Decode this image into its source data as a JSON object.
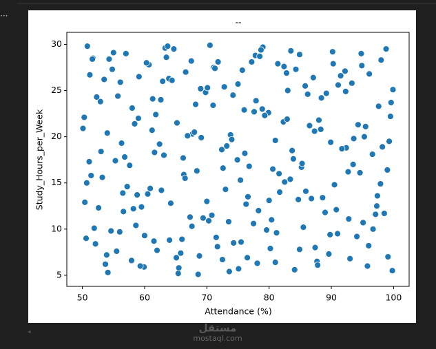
{
  "toolbar": "...",
  "watermark": {
    "logo": "مستقل",
    "text": "mostaql.com"
  },
  "chart_data": {
    "type": "scatter",
    "title": "--",
    "x_label": "Attendance (%)",
    "y_label": "Study_Hours_per_Week",
    "color": "#1f77b4",
    "xlim": [
      47.5,
      102.5
    ],
    "ylim": [
      3.8,
      31.3
    ],
    "xticks": [
      50,
      60,
      70,
      80,
      90,
      100
    ],
    "yticks": [
      5,
      10,
      15,
      20,
      25,
      30
    ],
    "x": [
      50.3,
      52.1,
      54.8,
      57.2,
      59.9,
      62.4,
      64.7,
      67.3,
      69.8,
      72.5,
      74.9,
      77.2,
      79.6,
      82.3,
      84.7,
      87.1,
      89.6,
      92.4,
      94.8,
      97.3,
      99.6,
      51.4,
      53.7,
      56.1,
      58.6,
      61.2,
      63.5,
      66.0,
      68.4,
      71.1,
      73.6,
      76.0,
      78.3,
      81.0,
      83.5,
      85.9,
      88.4,
      91.0,
      93.5,
      96.1,
      98.5,
      50.8,
      53.0,
      55.5,
      58.0,
      60.5,
      62.9,
      65.4,
      67.7,
      70.3,
      72.8,
      75.4,
      77.8,
      80.2,
      82.9,
      85.2,
      87.7,
      90.3,
      92.8,
      95.3,
      97.9,
      99.9,
      51.9,
      54.3,
      56.8,
      59.3,
      61.8,
      64.2,
      66.6,
      69.1,
      71.7,
      74.2,
      76.6,
      79.0,
      81.6,
      84.1,
      86.5,
      89.0,
      91.5,
      94.1,
      96.6,
      99.1,
      50.1,
      52.6,
      55.0,
      57.6,
      60.0,
      62.6,
      65.1,
      67.5,
      70.0,
      72.4,
      75.0,
      77.5,
      79.9,
      82.5,
      84.9,
      87.4,
      89.9,
      92.3,
      94.9,
      97.4,
      99.8,
      51.1,
      53.5,
      56.0,
      58.4,
      60.9,
      63.3,
      65.8,
      68.2,
      70.8,
      73.2,
      75.7,
      78.1,
      80.6,
      83.0,
      85.5,
      88.0,
      90.5,
      93.0,
      95.5,
      98.0,
      50.6,
      53.2,
      55.7,
      58.2,
      60.7,
      63.1,
      65.5,
      68.0,
      70.5,
      73.0,
      75.5,
      77.9,
      80.4,
      82.8,
      85.3,
      87.8,
      90.2,
      92.7,
      95.1,
      97.6,
      99.3,
      51.7,
      54.1,
      56.5,
      59.0,
      61.5,
      63.9,
      66.3,
      68.8,
      71.3,
      73.8,
      76.3,
      78.7,
      81.2,
      83.7,
      86.2,
      88.6,
      91.1,
      93.6,
      96.0,
      98.8,
      50.4,
      52.9,
      55.3,
      57.9,
      60.3,
      62.7,
      65.2,
      67.6,
      70.1,
      72.6,
      75.1,
      77.6,
      80.0,
      82.4,
      84.9,
      87.3,
      89.8,
      92.2,
      94.6,
      97.1,
      99.5,
      51.2,
      53.9,
      56.3,
      58.8,
      61.3,
      63.7,
      66.2,
      68.6,
      71.0,
      73.5,
      76.1,
      78.5,
      81.0,
      83.4,
      85.8,
      88.3,
      90.8,
      93.3,
      95.8,
      98.2,
      50.7,
      52.3,
      54.6,
      57.0,
      59.5,
      62.0,
      64.4,
      66.9,
      69.4,
      71.8,
      74.3,
      76.8,
      79.3,
      81.7,
      84.3,
      86.8,
      89.2,
      91.7,
      94.3,
      96.7,
      99.0,
      51.6,
      54.0,
      56.6,
      59.1,
      61.6,
      64.0,
      66.5,
      69.0,
      71.5,
      74.0,
      76.5,
      78.9,
      81.4,
      83.9
    ],
    "y": [
      22.1,
      8.4,
      27.3,
      14.6,
      5.9,
      19.2,
      29.5,
      11.3,
      24.8,
      6.7,
      17.5,
      28.1,
      9.9,
      21.6,
      13.2,
      26.4,
      7.3,
      18.8,
      29.0,
      12.5,
      23.7,
      15.8,
      6.2,
      25.9,
      10.4,
      20.7,
      28.6,
      8.9,
      16.3,
      27.5,
      5.4,
      22.9,
      12.0,
      19.6,
      29.3,
      14.1,
      24.2,
      9.5,
      17.0,
      26.8,
      11.7,
      29.8,
      18.4,
      7.6,
      23.1,
      13.8,
      26.0,
      5.2,
      20.3,
      10.9,
      25.4,
      15.3,
      28.8,
      7.9,
      21.9,
      16.7,
      6.5,
      27.9,
      11.1,
      20.0,
      14.9,
      25.1,
      10.1,
      28.4,
      17.8,
      6.0,
      22.4,
      12.8,
      27.0,
      19.9,
      8.1,
      24.5,
      13.5,
      29.7,
      16.0,
      5.6,
      21.2,
      11.8,
      26.6,
      9.2,
      18.1,
      7.0,
      20.9,
      12.3,
      29.1,
      16.9,
      9.3,
      24.0,
      6.9,
      28.2,
      13.0,
      18.6,
      25.7,
      10.6,
      22.6,
      15.1,
      28.9,
      8.0,
      19.4,
      24.9,
      27.7,
      13.6,
      5.5,
      17.3,
      26.2,
      9.7,
      21.4,
      14.4,
      29.6,
      7.4,
      23.5,
      11.5,
      19.0,
      27.2,
      6.3,
      16.5,
      25.0,
      10.2,
      21.8,
      14.8,
      6.8,
      21.1,
      28.3,
      9.0,
      15.6,
      24.4,
      12.2,
      27.8,
      18.0,
      5.8,
      20.5,
      29.9,
      14.3,
      8.6,
      23.9,
      11.0,
      26.9,
      17.1,
      6.1,
      29.2,
      16.2,
      10.7,
      23.3,
      19.5,
      28.5,
      5.3,
      13.9,
      22.0,
      8.7,
      26.3,
      15.9,
      7.1,
      27.4,
      20.2,
      12.7,
      29.4,
      9.6,
      18.5,
      24.6,
      13.4,
      25.6,
      19.8,
      8.2,
      29.5,
      12.9,
      23.8,
      17.4,
      6.6,
      28.0,
      14.2,
      21.5,
      10.3,
      25.3,
      16.6,
      5.7,
      22.7,
      13.1,
      27.6,
      7.8,
      20.6,
      9.4,
      27.1,
      16.1,
      11.6,
      22.2,
      26.7,
      7.2,
      19.3,
      13.7,
      24.1,
      29.8,
      17.7,
      5.1,
      23.4,
      10.8,
      18.2,
      28.7,
      6.4,
      15.4,
      25.5,
      20.8,
      12.1,
      25.8,
      6.0,
      18.9,
      15.0,
      24.3,
      9.8,
      29.0,
      12.4,
      7.7,
      26.1,
      20.1,
      11.2,
      28.1,
      8.5,
      16.8,
      22.3,
      14.0,
      27.3,
      13.3,
      24.7,
      18.7,
      21.3,
      10.0,
      16.4,
      28.4,
      20.4,
      11.9,
      26.5,
      18.3,
      8.8,
      15.5,
      25.2,
      9.1,
      19.7,
      6.9,
      23.0,
      27.9,
      17.6
    ]
  }
}
